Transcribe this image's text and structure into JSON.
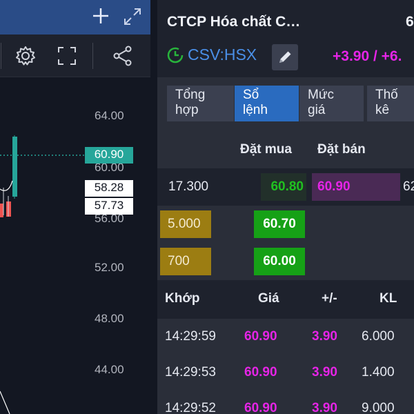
{
  "chart": {
    "axis_ticks": [
      "64.00",
      "60.00",
      "56.00",
      "52.00",
      "48.00",
      "44.00"
    ],
    "last_price_label": "60.90",
    "cursor_high_label": "58.28",
    "cursor_low_label": "57.73"
  },
  "stock": {
    "company_name": "CTCP Hóa chất C…",
    "price_corner": "6",
    "symbol": "CSV:HSX",
    "change": "+3.90 / +6."
  },
  "tabs": [
    {
      "line1": "Tổng",
      "line2": "hợp",
      "active": false
    },
    {
      "line1": "Sổ",
      "line2": "lệnh",
      "active": true
    },
    {
      "line1": "Mức",
      "line2": "giá",
      "active": false
    },
    {
      "line1": "Thố",
      "line2": "kê",
      "active": false
    }
  ],
  "orderbook": {
    "bid_header": "Đặt mua",
    "ask_header": "Đặt bán",
    "rows": [
      {
        "bid_vol": "17.300",
        "bid_price": "60.80",
        "ask_price": "60.90",
        "ask_vol": "62"
      },
      {
        "bid_vol": "5.000",
        "bid_price": "60.70",
        "ask_price": "",
        "ask_vol": ""
      },
      {
        "bid_vol": "700",
        "bid_price": "60.00",
        "ask_price": "",
        "ask_vol": ""
      }
    ]
  },
  "trades": {
    "headers": {
      "time": "Khớp",
      "price": "Giá",
      "change": "+/-",
      "volume": "KL"
    },
    "rows": [
      {
        "time": "14:29:59",
        "price": "60.90",
        "change": "3.90",
        "volume": "6.000"
      },
      {
        "time": "14:29:53",
        "price": "60.90",
        "change": "3.90",
        "volume": "1.400"
      },
      {
        "time": "14:29:52",
        "price": "60.90",
        "change": "3.90",
        "volume": "9.000"
      }
    ]
  },
  "colors": {
    "up_pink": "#e524e6",
    "bid_green": "#16a116",
    "gold": "#9c7d12",
    "symbol_blue": "#4a8fe7",
    "active_tab": "#2a6bbf"
  }
}
